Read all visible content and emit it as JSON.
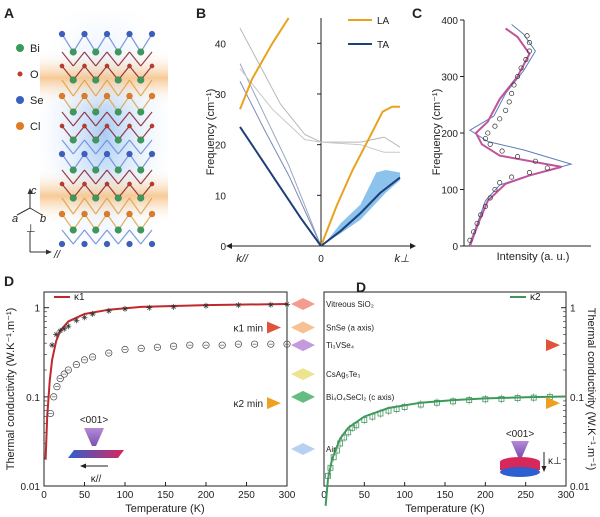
{
  "panels": {
    "a": "A",
    "b": "B",
    "c": "C",
    "d_left": "D",
    "d_right": "D"
  },
  "crystal": {
    "species": [
      {
        "label": "Bi",
        "color": "#3a9a5b"
      },
      {
        "label": "O",
        "color": "#c0392b"
      },
      {
        "label": "Se",
        "color": "#3b5fc0"
      },
      {
        "label": "Cl",
        "color": "#e07b24"
      }
    ],
    "axes": {
      "c": "c",
      "a": "a",
      "b": "b",
      "perp": "⊥",
      "par": "//"
    }
  },
  "chart_data": [
    {
      "type": "line",
      "panel": "B",
      "ylabel": "Frequency (cm⁻¹)",
      "ylim": [
        0,
        45
      ],
      "yticks": [
        0,
        10,
        20,
        30,
        40
      ],
      "xlim": [
        -1,
        1
      ],
      "xtick_labels": {
        "left": "k//",
        "center": "0",
        "right": "k⊥"
      },
      "legend": [
        "LA",
        "TA"
      ],
      "colors": {
        "LA": "#e8a21e",
        "TA": "#1f3f7a"
      },
      "series": [
        {
          "name": "LA",
          "points": [
            [
              -1,
              27
            ],
            [
              -0.85,
              33
            ],
            [
              -0.6,
              40
            ],
            [
              -0.4,
              45
            ]
          ]
        },
        {
          "name": "LA",
          "points": [
            [
              0,
              0
            ],
            [
              0.2,
              8
            ],
            [
              0.4,
              15
            ],
            [
              0.6,
              21
            ],
            [
              0.78,
              26.5
            ],
            [
              0.9,
              27.5
            ],
            [
              1,
              27.5
            ]
          ]
        },
        {
          "name": "TA",
          "points": [
            [
              -1,
              23.5
            ],
            [
              -0.75,
              17.5
            ],
            [
              -0.5,
              11.5
            ],
            [
              -0.25,
              5.5
            ],
            [
              0,
              0
            ]
          ]
        },
        {
          "name": "TA",
          "points": [
            [
              0,
              0
            ],
            [
              0.25,
              3
            ],
            [
              0.5,
              6.5
            ],
            [
              0.75,
              10.5
            ],
            [
              1,
              13.5
            ]
          ]
        }
      ],
      "thin_lines": [
        [
          [
            -1,
            32.5
          ],
          [
            -0.7,
            23
          ],
          [
            -0.4,
            14
          ],
          [
            0,
            0
          ]
        ],
        [
          [
            -1,
            36
          ],
          [
            -0.7,
            26
          ],
          [
            -0.4,
            16
          ],
          [
            0,
            0
          ]
        ],
        [
          [
            -1,
            43
          ],
          [
            -0.5,
            28
          ],
          [
            -0.2,
            22
          ],
          [
            0,
            20.5
          ],
          [
            0.5,
            20.5
          ],
          [
            0.8,
            21.5
          ],
          [
            1,
            19.5
          ]
        ],
        [
          [
            -1,
            35
          ],
          [
            -0.6,
            27
          ],
          [
            -0.2,
            21
          ],
          [
            0,
            20.5
          ],
          [
            0.5,
            20
          ],
          [
            0.8,
            18.5
          ],
          [
            1,
            18.5
          ]
        ]
      ],
      "band_TA": [
        [
          0.05,
          0.5,
          0.5
        ],
        [
          0.25,
          2.5,
          4.5
        ],
        [
          0.5,
          5.2,
          8.2
        ],
        [
          0.7,
          8.5,
          14.5
        ],
        [
          0.82,
          10.5,
          15
        ],
        [
          1,
          13,
          14.5
        ]
      ]
    },
    {
      "type": "line",
      "panel": "C",
      "ylabel": "Frequency (cm⁻¹)",
      "xlabel": "Intensity (a. u.)",
      "ylim": [
        0,
        400
      ],
      "yticks": [
        0,
        100,
        200,
        300,
        400
      ],
      "curve_pink": [
        [
          0.05,
          0
        ],
        [
          0.12,
          40
        ],
        [
          0.2,
          80
        ],
        [
          0.35,
          110
        ],
        [
          0.55,
          125
        ],
        [
          0.82,
          140
        ],
        [
          0.3,
          160
        ],
        [
          0.15,
          180
        ],
        [
          0.1,
          200
        ],
        [
          0.2,
          220
        ],
        [
          0.3,
          260
        ],
        [
          0.45,
          300
        ],
        [
          0.55,
          340
        ],
        [
          0.45,
          370
        ],
        [
          0.35,
          385
        ]
      ],
      "curve_blue": [
        [
          0.04,
          0
        ],
        [
          0.12,
          45
        ],
        [
          0.18,
          80
        ],
        [
          0.3,
          108
        ],
        [
          0.5,
          122
        ],
        [
          0.9,
          145
        ],
        [
          0.5,
          170
        ],
        [
          0.2,
          185
        ],
        [
          0.05,
          205
        ],
        [
          0.25,
          230
        ],
        [
          0.35,
          270
        ],
        [
          0.5,
          310
        ],
        [
          0.6,
          345
        ],
        [
          0.5,
          375
        ],
        [
          0.4,
          392
        ]
      ],
      "markers": [
        [
          0.05,
          10
        ],
        [
          0.08,
          25
        ],
        [
          0.11,
          40
        ],
        [
          0.14,
          55
        ],
        [
          0.18,
          70
        ],
        [
          0.22,
          85
        ],
        [
          0.26,
          100
        ],
        [
          0.3,
          112
        ],
        [
          0.4,
          122
        ],
        [
          0.55,
          130
        ],
        [
          0.7,
          138
        ],
        [
          0.6,
          150
        ],
        [
          0.45,
          158
        ],
        [
          0.32,
          168
        ],
        [
          0.22,
          180
        ],
        [
          0.18,
          190
        ],
        [
          0.2,
          200
        ],
        [
          0.26,
          212
        ],
        [
          0.3,
          225
        ],
        [
          0.35,
          240
        ],
        [
          0.38,
          255
        ],
        [
          0.4,
          270
        ],
        [
          0.42,
          285
        ],
        [
          0.45,
          300
        ],
        [
          0.48,
          315
        ],
        [
          0.52,
          330
        ],
        [
          0.55,
          345
        ],
        [
          0.55,
          360
        ],
        [
          0.53,
          372
        ]
      ]
    },
    {
      "type": "scatter",
      "panel": "D-left",
      "ylabel": "Thermal conductivity (W.K⁻¹.m⁻¹)",
      "xlabel": "Temperature (K)",
      "yscale": "log",
      "ylim": [
        0.01,
        1.5
      ],
      "xlim": [
        0,
        300
      ],
      "xticks": [
        0,
        50,
        100,
        150,
        200,
        250,
        300
      ],
      "yticks": [
        0.01,
        0.1,
        1
      ],
      "ytick_labels": [
        "0.01",
        "0.1",
        "1"
      ],
      "legend": "κ1",
      "fit_color": "#c0282d",
      "fit": [
        [
          2,
          0.02
        ],
        [
          4,
          0.06
        ],
        [
          7,
          0.15
        ],
        [
          10,
          0.26
        ],
        [
          15,
          0.42
        ],
        [
          20,
          0.55
        ],
        [
          30,
          0.7
        ],
        [
          50,
          0.85
        ],
        [
          80,
          0.95
        ],
        [
          120,
          1.02
        ],
        [
          200,
          1.07
        ],
        [
          300,
          1.1
        ]
      ],
      "kappa1": [
        [
          10,
          0.38
        ],
        [
          15,
          0.5
        ],
        [
          20,
          0.55
        ],
        [
          25,
          0.58
        ],
        [
          30,
          0.62
        ],
        [
          40,
          0.72
        ],
        [
          50,
          0.78
        ],
        [
          60,
          0.85
        ],
        [
          80,
          0.92
        ],
        [
          100,
          0.97
        ],
        [
          130,
          1.0
        ],
        [
          160,
          1.02
        ],
        [
          200,
          1.05
        ],
        [
          240,
          1.07
        ],
        [
          280,
          1.08
        ],
        [
          300,
          1.09
        ]
      ],
      "kappa2": [
        [
          8,
          0.065
        ],
        [
          12,
          0.1
        ],
        [
          16,
          0.13
        ],
        [
          20,
          0.16
        ],
        [
          25,
          0.18
        ],
        [
          30,
          0.2
        ],
        [
          40,
          0.23
        ],
        [
          50,
          0.26
        ],
        [
          60,
          0.28
        ],
        [
          80,
          0.31
        ],
        [
          100,
          0.34
        ],
        [
          120,
          0.35
        ],
        [
          140,
          0.36
        ],
        [
          160,
          0.37
        ],
        [
          180,
          0.38
        ],
        [
          200,
          0.38
        ],
        [
          220,
          0.38
        ],
        [
          240,
          0.39
        ],
        [
          260,
          0.39
        ],
        [
          280,
          0.39
        ],
        [
          300,
          0.39
        ]
      ],
      "min_markers": [
        {
          "label": "κ1 min",
          "value": 0.6,
          "color": "#e0533a"
        },
        {
          "label": "κ2 min",
          "value": 0.085,
          "color": "#f0a020"
        }
      ],
      "inset_label": "<001>",
      "inset_arrow_label": "κ//"
    },
    {
      "type": "scatter",
      "panel": "D-right",
      "ylabel": "Thermal conductivity (W.K⁻¹.m⁻¹)",
      "xlabel": "Temperature (K)",
      "yscale": "log",
      "ylim": [
        0.01,
        1.5
      ],
      "xlim": [
        0,
        300
      ],
      "xticks": [
        0,
        50,
        100,
        150,
        200,
        250,
        300
      ],
      "yticks": [
        0.01,
        0.1,
        1
      ],
      "ytick_labels": [
        "0.01",
        "0.1",
        "1"
      ],
      "legend": "κ2",
      "fit_color": "#3a9a5b",
      "fit": [
        [
          2,
          0.006
        ],
        [
          5,
          0.012
        ],
        [
          10,
          0.02
        ],
        [
          20,
          0.034
        ],
        [
          30,
          0.045
        ],
        [
          50,
          0.06
        ],
        [
          80,
          0.075
        ],
        [
          120,
          0.086
        ],
        [
          160,
          0.092
        ],
        [
          200,
          0.096
        ],
        [
          250,
          0.099
        ],
        [
          300,
          0.101
        ]
      ],
      "kappa2": [
        [
          5,
          0.013
        ],
        [
          8,
          0.016
        ],
        [
          12,
          0.021
        ],
        [
          16,
          0.025
        ],
        [
          20,
          0.03
        ],
        [
          25,
          0.035
        ],
        [
          30,
          0.04
        ],
        [
          35,
          0.045
        ],
        [
          40,
          0.048
        ],
        [
          50,
          0.055
        ],
        [
          60,
          0.06
        ],
        [
          70,
          0.065
        ],
        [
          80,
          0.07
        ],
        [
          90,
          0.073
        ],
        [
          100,
          0.077
        ],
        [
          120,
          0.082
        ],
        [
          140,
          0.086
        ],
        [
          160,
          0.089
        ],
        [
          180,
          0.092
        ],
        [
          200,
          0.094
        ],
        [
          220,
          0.095
        ],
        [
          240,
          0.097
        ],
        [
          260,
          0.098
        ],
        [
          280,
          0.1
        ]
      ],
      "min_markers": [
        {
          "label": "",
          "value": 0.38,
          "color": "#e0533a"
        },
        {
          "label": "",
          "value": 0.085,
          "color": "#f0a020"
        }
      ],
      "inset_label": "<001>",
      "inset_arrow_label": "κ⊥"
    }
  ],
  "materials": [
    {
      "label": "Vitreous SiO₂",
      "value": 1.1,
      "color": "#f08a7a"
    },
    {
      "label": "SnSe (a axis)",
      "value": 0.6,
      "color": "#f4b77e"
    },
    {
      "label": "Ti₃VSe₄",
      "value": 0.38,
      "color": "#b98ad6"
    },
    {
      "label": "CsAg₅Te₃",
      "value": 0.18,
      "color": "#eadf7c"
    },
    {
      "label": "Bi₄O₄SeCl₂ (c axis)",
      "value": 0.1,
      "color": "#4ab06a"
    },
    {
      "label": "Air",
      "value": 0.026,
      "color": "#a9c9ee"
    }
  ]
}
